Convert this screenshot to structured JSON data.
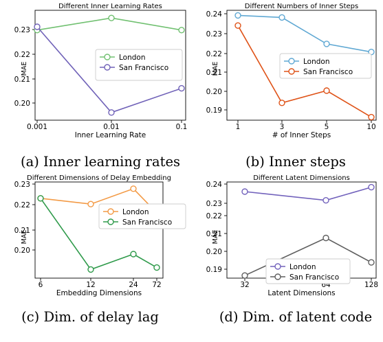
{
  "chart_data": [
    {
      "type": "line",
      "title": "Different Inner Learning Rates",
      "xlabel": "Inner Learning Rate",
      "ylabel": "MAE",
      "caption": "(a) Inner learning rates",
      "categories": [
        "0.001",
        "0.01",
        "0.1"
      ],
      "y_ticks": [
        "0.20",
        "0.21",
        "0.22",
        "0.23"
      ],
      "ylim": [
        0.1915,
        0.2415
      ],
      "legend_position": "center-right",
      "series": [
        {
          "name": "London",
          "color": "#70c070",
          "values": [
            0.2325,
            0.238,
            0.2325
          ]
        },
        {
          "name": "San Francisco",
          "color": "#7062b8",
          "values": [
            0.234,
            0.195,
            0.206
          ]
        }
      ]
    },
    {
      "type": "line",
      "title": "Different Numbers of Inner Steps",
      "xlabel": "# of Inner Steps",
      "ylabel": "MAE",
      "caption": "(b) Inner steps",
      "categories": [
        "1",
        "3",
        "5",
        "10"
      ],
      "y_ticks": [
        "0.19",
        "0.20",
        "0.21",
        "0.22",
        "0.23",
        "0.24"
      ],
      "ylim": [
        0.1865,
        0.2405
      ],
      "legend_position": "center-right",
      "series": [
        {
          "name": "London",
          "color": "#5fa8d3",
          "values": [
            0.238,
            0.237,
            0.224,
            0.22
          ]
        },
        {
          "name": "San Francisco",
          "color": "#df5318",
          "values": [
            0.233,
            0.195,
            0.201,
            0.188
          ]
        }
      ]
    },
    {
      "type": "line",
      "title": "Different Dimensions of Delay Embedding",
      "xlabel": "Embedding Dimensions",
      "ylabel": "MAE",
      "caption": "(c) Dim. of delay lag",
      "categories": [
        "6",
        "12",
        "24",
        "72"
      ],
      "y_ticks": [
        "0.20",
        "0.21",
        "0.22",
        "0.23"
      ],
      "ylim": [
        0.1895,
        0.2395
      ],
      "legend_position": "center-right",
      "series": [
        {
          "name": "London",
          "color": "#f39a45",
          "values": [
            0.231,
            0.228,
            0.236,
            0.2235
          ]
        },
        {
          "name": "San Francisco",
          "color": "#2e9a4a",
          "values": [
            0.231,
            0.194,
            0.202,
            0.195
          ]
        }
      ]
    },
    {
      "type": "line",
      "title": "Different Latent Dimensions",
      "xlabel": "Latent Dimensions",
      "ylabel": "MAE",
      "caption": "(d) Dim. of latent code",
      "categories": [
        "32",
        "64",
        "128"
      ],
      "y_ticks": [
        "0.19",
        "0.20",
        "0.21",
        "0.22",
        "0.23",
        "0.24"
      ],
      "ylim": [
        0.1855,
        0.2405
      ],
      "legend_position": "lower-left",
      "series": [
        {
          "name": "London",
          "color": "#7262bc",
          "values": [
            0.235,
            0.23,
            0.2375
          ]
        },
        {
          "name": "San Francisco",
          "color": "#5e5e5e",
          "values": [
            0.187,
            0.2085,
            0.1945
          ]
        }
      ]
    }
  ]
}
